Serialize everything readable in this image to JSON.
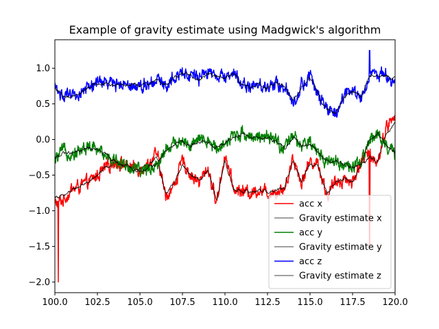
{
  "chart_data": {
    "type": "line",
    "title": "Example of gravity estimate using Madgwick's algorithm",
    "xlabel": "",
    "ylabel": "",
    "xlim": [
      100.0,
      120.0
    ],
    "ylim": [
      -2.15,
      1.4
    ],
    "x_ticks": [
      100.0,
      102.5,
      105.0,
      107.5,
      110.0,
      112.5,
      115.0,
      117.5,
      120.0
    ],
    "x_tick_labels": [
      "100.0",
      "102.5",
      "105.0",
      "107.5",
      "110.0",
      "112.5",
      "115.0",
      "117.5",
      "120.0"
    ],
    "y_ticks": [
      -2.0,
      -1.5,
      -1.0,
      -0.5,
      0.0,
      0.5,
      1.0
    ],
    "y_tick_labels": [
      "−2.0",
      "−1.5",
      "−1.0",
      "−0.5",
      "0.0",
      "0.5",
      "1.0"
    ],
    "grid": false,
    "legend_position": "lower-right",
    "x": [
      100.0,
      100.5,
      101.0,
      101.5,
      102.0,
      102.5,
      103.0,
      103.5,
      104.0,
      104.5,
      105.0,
      105.5,
      106.0,
      106.5,
      107.0,
      107.5,
      108.0,
      108.5,
      109.0,
      109.5,
      110.0,
      110.5,
      111.0,
      111.5,
      112.0,
      112.5,
      113.0,
      113.5,
      114.0,
      114.5,
      115.0,
      115.5,
      116.0,
      116.5,
      117.0,
      117.5,
      118.0,
      118.5,
      119.0,
      119.5,
      120.0
    ],
    "series": [
      {
        "name": "acc x",
        "color": "#ff0000",
        "width": 1.5,
        "values": [
          -0.9,
          -0.85,
          -0.7,
          -0.65,
          -0.6,
          -0.5,
          -0.4,
          -0.3,
          -0.35,
          -0.4,
          -0.4,
          -0.35,
          -0.2,
          -0.8,
          -0.65,
          -0.3,
          -0.5,
          -0.6,
          -0.4,
          -0.9,
          -0.2,
          -0.7,
          -0.72,
          -0.75,
          -0.7,
          -0.75,
          -0.72,
          -0.7,
          -0.25,
          -0.6,
          -0.3,
          -0.35,
          -0.8,
          -0.6,
          -0.55,
          -0.6,
          -0.3,
          -0.2,
          -0.3,
          0.2,
          0.3
        ]
      },
      {
        "name": "Gravity estimate x",
        "color": "#000000",
        "width": 0.8,
        "values": [
          -0.8,
          -0.8,
          -0.72,
          -0.65,
          -0.6,
          -0.5,
          -0.4,
          -0.32,
          -0.36,
          -0.4,
          -0.41,
          -0.37,
          -0.25,
          -0.75,
          -0.62,
          -0.35,
          -0.5,
          -0.58,
          -0.45,
          -0.85,
          -0.3,
          -0.7,
          -0.72,
          -0.74,
          -0.7,
          -0.74,
          -0.72,
          -0.68,
          -0.3,
          -0.58,
          -0.33,
          -0.38,
          -0.75,
          -0.6,
          -0.56,
          -0.6,
          -0.35,
          -0.25,
          -0.3,
          0.1,
          0.25
        ]
      },
      {
        "name": "acc y",
        "color": "#008000",
        "width": 1.5,
        "values": [
          -0.3,
          -0.15,
          -0.2,
          -0.15,
          -0.1,
          -0.15,
          -0.2,
          -0.3,
          -0.35,
          -0.4,
          -0.45,
          -0.4,
          -0.35,
          -0.15,
          -0.05,
          0.0,
          -0.1,
          0.0,
          -0.05,
          -0.1,
          -0.05,
          0.05,
          0.1,
          0.05,
          0.05,
          0.0,
          0.0,
          -0.15,
          0.05,
          -0.1,
          -0.05,
          -0.2,
          -0.3,
          -0.3,
          -0.35,
          -0.4,
          -0.35,
          0.0,
          0.1,
          -0.1,
          -0.2
        ]
      },
      {
        "name": "Gravity estimate y",
        "color": "#000000",
        "width": 0.8,
        "values": [
          -0.28,
          -0.18,
          -0.2,
          -0.16,
          -0.12,
          -0.15,
          -0.22,
          -0.3,
          -0.36,
          -0.41,
          -0.44,
          -0.4,
          -0.34,
          -0.17,
          -0.07,
          -0.02,
          -0.1,
          -0.02,
          -0.06,
          -0.1,
          -0.06,
          0.03,
          0.08,
          0.04,
          0.04,
          0.0,
          -0.01,
          -0.13,
          0.03,
          -0.1,
          -0.07,
          -0.2,
          -0.3,
          -0.31,
          -0.35,
          -0.4,
          -0.33,
          -0.02,
          0.08,
          -0.1,
          -0.18
        ]
      },
      {
        "name": "acc z",
        "color": "#0000ff",
        "width": 1.5,
        "values": [
          0.75,
          0.6,
          0.6,
          0.65,
          0.75,
          0.8,
          0.8,
          0.78,
          0.8,
          0.78,
          0.75,
          0.8,
          0.85,
          0.75,
          0.9,
          0.95,
          0.9,
          0.85,
          0.95,
          0.9,
          0.85,
          0.95,
          0.78,
          0.72,
          0.78,
          0.72,
          0.8,
          0.75,
          0.5,
          0.75,
          0.9,
          0.6,
          0.4,
          0.35,
          0.6,
          0.7,
          0.6,
          0.9,
          0.9,
          0.9,
          0.85
        ]
      },
      {
        "name": "Gravity estimate z",
        "color": "#000000",
        "width": 0.8,
        "values": [
          0.72,
          0.6,
          0.61,
          0.65,
          0.74,
          0.79,
          0.79,
          0.77,
          0.79,
          0.77,
          0.75,
          0.79,
          0.84,
          0.76,
          0.88,
          0.93,
          0.89,
          0.85,
          0.93,
          0.89,
          0.85,
          0.93,
          0.78,
          0.73,
          0.77,
          0.73,
          0.79,
          0.74,
          0.55,
          0.74,
          0.87,
          0.62,
          0.42,
          0.37,
          0.58,
          0.68,
          0.6,
          0.88,
          0.9,
          0.89,
          0.85
        ]
      }
    ],
    "annotations": [
      {
        "text": "spike",
        "x": 100.2,
        "y": -2.0,
        "series": "acc x"
      },
      {
        "text": "spike",
        "x": 118.5,
        "y": 1.25,
        "series": "acc z"
      },
      {
        "text": "spike",
        "x": 118.5,
        "y": -1.5,
        "series": "acc x"
      }
    ]
  }
}
